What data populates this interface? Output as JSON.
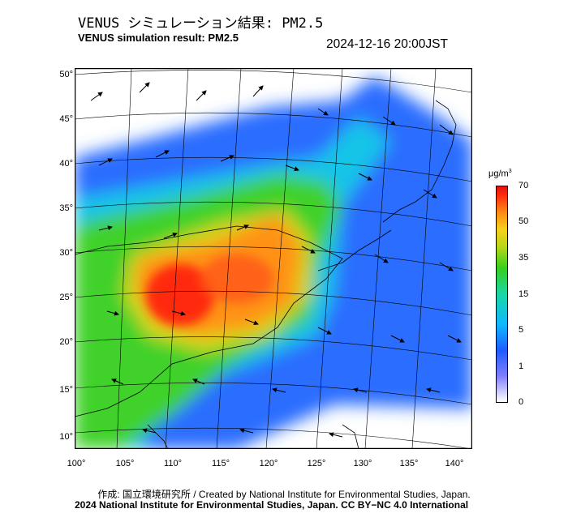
{
  "header": {
    "title_jp": "VENUS シミュレーション結果: PM2.5",
    "title_en": "VENUS simulation result: PM2.5",
    "timestamp": "2024-12-16 20:00JST"
  },
  "map": {
    "variable": "PM2.5",
    "lat_ticks": [
      "50°",
      "45°",
      "40°",
      "35°",
      "30°",
      "25°",
      "20°",
      "15°",
      "10°"
    ],
    "lon_ticks": [
      "100°",
      "105°",
      "110°",
      "115°",
      "120°",
      "125°",
      "130°",
      "135°",
      "140°"
    ],
    "colorbar": {
      "unit_base": "μg/m",
      "unit_exp": "3",
      "ticks": [
        "70",
        "50",
        "35",
        "15",
        "5",
        "1",
        "0"
      ],
      "colors": [
        "#ffffff",
        "#7f7fff",
        "#1e5bff",
        "#11b8ff",
        "#18d7a6",
        "#35cf1d",
        "#b8d61a",
        "#f6d21a",
        "#ff8a16",
        "#ff2a10",
        "#e0140e"
      ]
    },
    "land_color": "#ffffff",
    "wind_vectors_shown": true,
    "hotspots": [
      {
        "name": "hotspot-south-china",
        "level": 70
      },
      {
        "name": "hotspot-east-china",
        "level": 50
      }
    ]
  },
  "footer": {
    "credit_line": "作成: 国立環境研究所 / Created by National Institute for Environmental Studies, Japan.",
    "license_line": "2024 National Institute for Environmental Studies, Japan. CC BY−NC 4.0 International"
  }
}
